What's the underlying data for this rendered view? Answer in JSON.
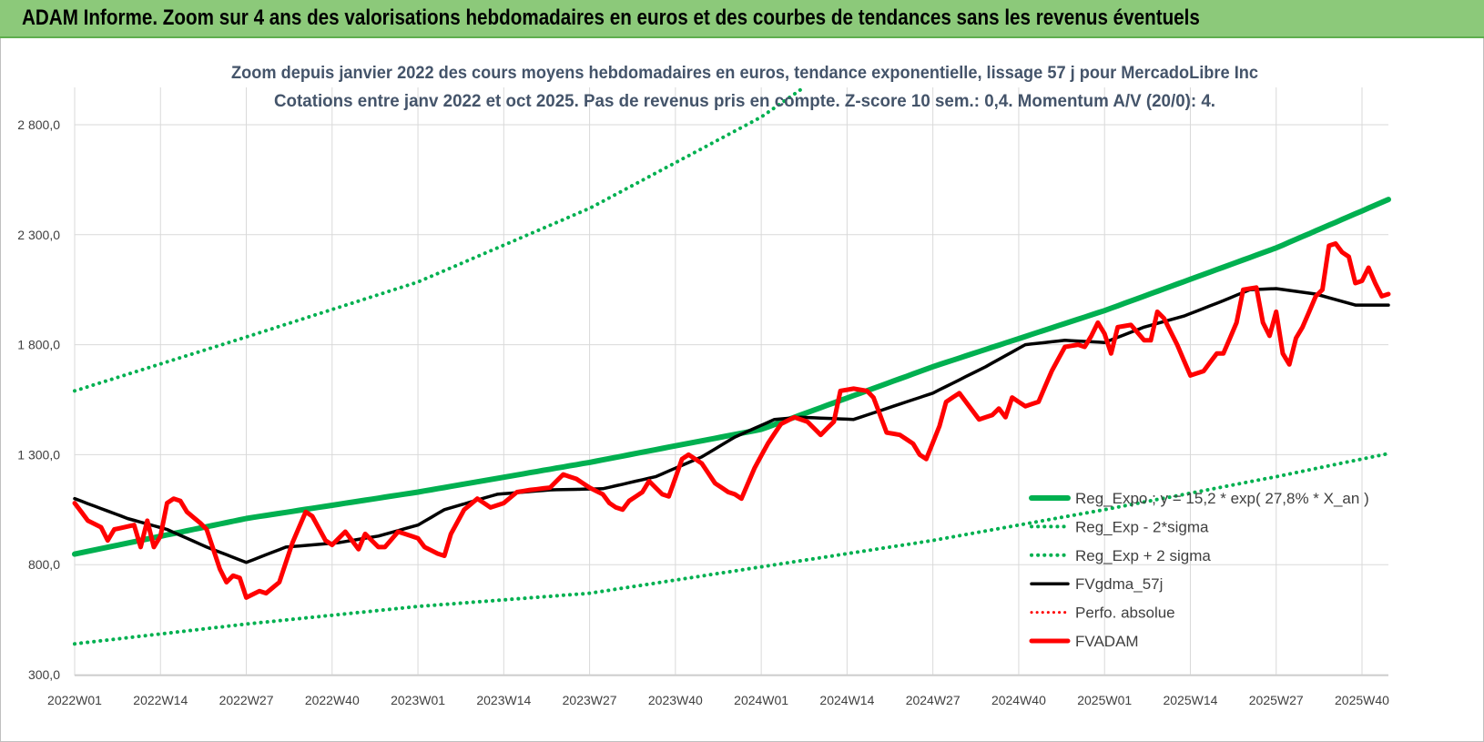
{
  "header": {
    "title": "ADAM Informe. Zoom sur 4 ans des valorisations hebdomadaires en euros et des courbes de tendances sans les revenus éventuels"
  },
  "chart_data": {
    "type": "line",
    "title": "Zoom depuis janvier 2022 des cours moyens hebdomadaires en euros, tendance exponentielle, lissage 57 j pour MercadoLibre Inc",
    "subtitle": "Cotations entre janv 2022 et oct 2025. Pas de revenus pris en compte. Z-score 10 sem.: 0,4. Momentum A/V (20/0): 4.",
    "xlabel": "",
    "ylabel": "",
    "ylim": [
      300,
      2800
    ],
    "grid": true,
    "legend_position": "bottom-right",
    "y_ticks": [
      "300,0",
      "800,0",
      "1 300,0",
      "1 800,0",
      "2 300,0",
      "2 800,0"
    ],
    "x_ticks": [
      "2022W01",
      "2022W14",
      "2022W27",
      "2022W40",
      "2023W01",
      "2023W14",
      "2023W27",
      "2023W40",
      "2024W01",
      "2024W14",
      "2024W27",
      "2024W40",
      "2025W01",
      "2025W14",
      "2025W27",
      "2025W40"
    ],
    "x_tick_index": [
      0,
      13,
      26,
      39,
      52,
      65,
      78,
      91,
      104,
      117,
      130,
      143,
      156,
      169,
      182,
      195
    ],
    "n_weeks": 200,
    "colors": {
      "reg_expo": "#00b050",
      "band": "#00b050",
      "fvgdma": "#000000",
      "perfo": "#ff0000",
      "fvadam": "#ff0000"
    },
    "series": [
      {
        "name": "Reg_Expo ; y = 15,2 * exp( 27,8% *  X_an )",
        "style": "solid-thick",
        "anchors": [
          [
            0,
            848
          ],
          [
            26,
            1010
          ],
          [
            52,
            1130
          ],
          [
            78,
            1265
          ],
          [
            104,
            1415
          ],
          [
            130,
            1700
          ],
          [
            156,
            1955
          ],
          [
            182,
            2240
          ],
          [
            199,
            2460
          ]
        ]
      },
      {
        "name": "Reg_Exp - 2*sigma",
        "style": "dotted",
        "anchors": [
          [
            0,
            440
          ],
          [
            26,
            530
          ],
          [
            52,
            610
          ],
          [
            78,
            670
          ],
          [
            104,
            790
          ],
          [
            130,
            910
          ],
          [
            156,
            1050
          ],
          [
            182,
            1200
          ],
          [
            199,
            1305
          ]
        ]
      },
      {
        "name": "Reg_Exp + 2 sigma",
        "style": "dotted",
        "anchors": [
          [
            0,
            1590
          ],
          [
            26,
            1835
          ],
          [
            52,
            2085
          ],
          [
            78,
            2420
          ],
          [
            104,
            2835
          ],
          [
            110,
            2960
          ]
        ]
      },
      {
        "name": "FVgdma_57j",
        "style": "solid",
        "anchors": [
          [
            0,
            1100
          ],
          [
            8,
            1010
          ],
          [
            14,
            960
          ],
          [
            20,
            880
          ],
          [
            26,
            810
          ],
          [
            32,
            880
          ],
          [
            40,
            900
          ],
          [
            46,
            930
          ],
          [
            52,
            980
          ],
          [
            56,
            1050
          ],
          [
            64,
            1120
          ],
          [
            72,
            1140
          ],
          [
            80,
            1145
          ],
          [
            88,
            1200
          ],
          [
            95,
            1290
          ],
          [
            100,
            1380
          ],
          [
            106,
            1460
          ],
          [
            110,
            1470
          ],
          [
            118,
            1460
          ],
          [
            124,
            1520
          ],
          [
            130,
            1580
          ],
          [
            138,
            1700
          ],
          [
            144,
            1800
          ],
          [
            150,
            1820
          ],
          [
            156,
            1810
          ],
          [
            162,
            1880
          ],
          [
            168,
            1930
          ],
          [
            174,
            2000
          ],
          [
            178,
            2050
          ],
          [
            182,
            2055
          ],
          [
            188,
            2030
          ],
          [
            194,
            1980
          ],
          [
            199,
            1980
          ]
        ]
      },
      {
        "name": "Perfo. absolue",
        "style": "dotted",
        "anchors": []
      },
      {
        "name": "FVADAM",
        "style": "solid-thick",
        "anchors": [
          [
            0,
            1080
          ],
          [
            2,
            1000
          ],
          [
            4,
            970
          ],
          [
            5,
            910
          ],
          [
            6,
            960
          ],
          [
            9,
            980
          ],
          [
            10,
            880
          ],
          [
            11,
            1000
          ],
          [
            12,
            880
          ],
          [
            13,
            930
          ],
          [
            14,
            1080
          ],
          [
            15,
            1100
          ],
          [
            16,
            1090
          ],
          [
            17,
            1040
          ],
          [
            19,
            990
          ],
          [
            20,
            960
          ],
          [
            22,
            780
          ],
          [
            23,
            720
          ],
          [
            24,
            750
          ],
          [
            25,
            740
          ],
          [
            26,
            650
          ],
          [
            28,
            680
          ],
          [
            29,
            670
          ],
          [
            31,
            720
          ],
          [
            33,
            900
          ],
          [
            35,
            1040
          ],
          [
            36,
            1020
          ],
          [
            38,
            910
          ],
          [
            39,
            890
          ],
          [
            41,
            950
          ],
          [
            43,
            870
          ],
          [
            44,
            940
          ],
          [
            46,
            880
          ],
          [
            47,
            880
          ],
          [
            49,
            950
          ],
          [
            50,
            940
          ],
          [
            52,
            920
          ],
          [
            53,
            880
          ],
          [
            55,
            850
          ],
          [
            56,
            840
          ],
          [
            57,
            940
          ],
          [
            59,
            1050
          ],
          [
            61,
            1100
          ],
          [
            63,
            1060
          ],
          [
            65,
            1080
          ],
          [
            67,
            1130
          ],
          [
            69,
            1140
          ],
          [
            72,
            1150
          ],
          [
            74,
            1210
          ],
          [
            76,
            1190
          ],
          [
            78,
            1150
          ],
          [
            80,
            1120
          ],
          [
            81,
            1080
          ],
          [
            82,
            1060
          ],
          [
            83,
            1050
          ],
          [
            84,
            1090
          ],
          [
            86,
            1130
          ],
          [
            87,
            1180
          ],
          [
            89,
            1120
          ],
          [
            90,
            1110
          ],
          [
            92,
            1280
          ],
          [
            93,
            1300
          ],
          [
            95,
            1260
          ],
          [
            97,
            1170
          ],
          [
            99,
            1130
          ],
          [
            100,
            1120
          ],
          [
            101,
            1100
          ],
          [
            103,
            1240
          ],
          [
            105,
            1350
          ],
          [
            107,
            1440
          ],
          [
            109,
            1470
          ],
          [
            111,
            1450
          ],
          [
            113,
            1390
          ],
          [
            115,
            1450
          ],
          [
            116,
            1590
          ],
          [
            118,
            1600
          ],
          [
            120,
            1590
          ],
          [
            121,
            1560
          ],
          [
            123,
            1400
          ],
          [
            125,
            1390
          ],
          [
            127,
            1350
          ],
          [
            128,
            1300
          ],
          [
            129,
            1280
          ],
          [
            131,
            1430
          ],
          [
            132,
            1540
          ],
          [
            134,
            1580
          ],
          [
            135,
            1540
          ],
          [
            137,
            1460
          ],
          [
            139,
            1480
          ],
          [
            140,
            1510
          ],
          [
            141,
            1470
          ],
          [
            142,
            1560
          ],
          [
            144,
            1520
          ],
          [
            146,
            1540
          ],
          [
            148,
            1680
          ],
          [
            150,
            1790
          ],
          [
            152,
            1800
          ],
          [
            153,
            1790
          ],
          [
            154,
            1840
          ],
          [
            155,
            1900
          ],
          [
            156,
            1850
          ],
          [
            157,
            1760
          ],
          [
            158,
            1880
          ],
          [
            160,
            1890
          ],
          [
            162,
            1820
          ],
          [
            163,
            1820
          ],
          [
            164,
            1950
          ],
          [
            165,
            1920
          ],
          [
            166,
            1860
          ],
          [
            167,
            1800
          ],
          [
            169,
            1660
          ],
          [
            171,
            1680
          ],
          [
            173,
            1760
          ],
          [
            174,
            1760
          ],
          [
            176,
            1900
          ],
          [
            177,
            2050
          ],
          [
            179,
            2060
          ],
          [
            180,
            1900
          ],
          [
            181,
            1840
          ],
          [
            182,
            1950
          ],
          [
            183,
            1760
          ],
          [
            184,
            1710
          ],
          [
            185,
            1830
          ],
          [
            186,
            1880
          ],
          [
            187,
            1950
          ],
          [
            188,
            2020
          ],
          [
            189,
            2050
          ],
          [
            190,
            2250
          ],
          [
            191,
            2260
          ],
          [
            192,
            2220
          ],
          [
            193,
            2200
          ],
          [
            194,
            2080
          ],
          [
            195,
            2090
          ],
          [
            196,
            2150
          ],
          [
            197,
            2080
          ],
          [
            198,
            2020
          ],
          [
            199,
            2030
          ]
        ]
      }
    ]
  }
}
